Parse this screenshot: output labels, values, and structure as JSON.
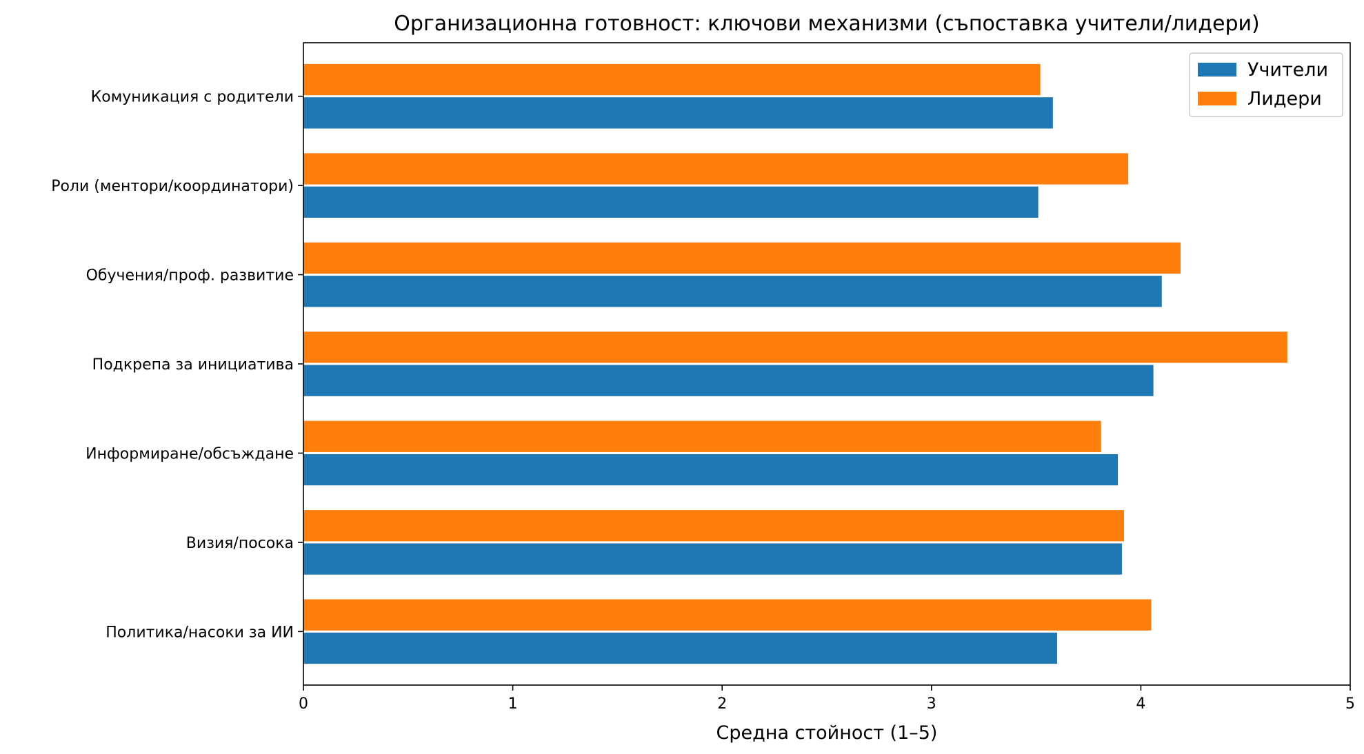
{
  "chart_data": {
    "type": "bar",
    "orientation": "horizontal",
    "title": "Организационна готовност: ключови механизми (съпоставка учители/лидери)",
    "xlabel": "Средна стойност (1–5)",
    "ylabel": "",
    "xlim": [
      0,
      5
    ],
    "xticks": [
      "0",
      "1",
      "2",
      "3",
      "4",
      "5"
    ],
    "grid": false,
    "legend_position": "top-right",
    "categories": [
      "Политика/насоки за ИИ",
      "Визия/посока",
      "Информиране/обсъждане",
      "Подкрепа за инициатива",
      "Обучения/проф. развитие",
      "Роли (ментори/координатори)",
      "Комуникация с родители"
    ],
    "series": [
      {
        "name": "Учители",
        "color": "#1f77b4",
        "values": [
          3.6,
          3.91,
          3.89,
          4.06,
          4.1,
          3.51,
          3.58
        ]
      },
      {
        "name": "Лидери",
        "color": "#ff7f0e",
        "values": [
          4.05,
          3.92,
          3.81,
          4.7,
          4.19,
          3.94,
          3.52
        ]
      }
    ]
  }
}
